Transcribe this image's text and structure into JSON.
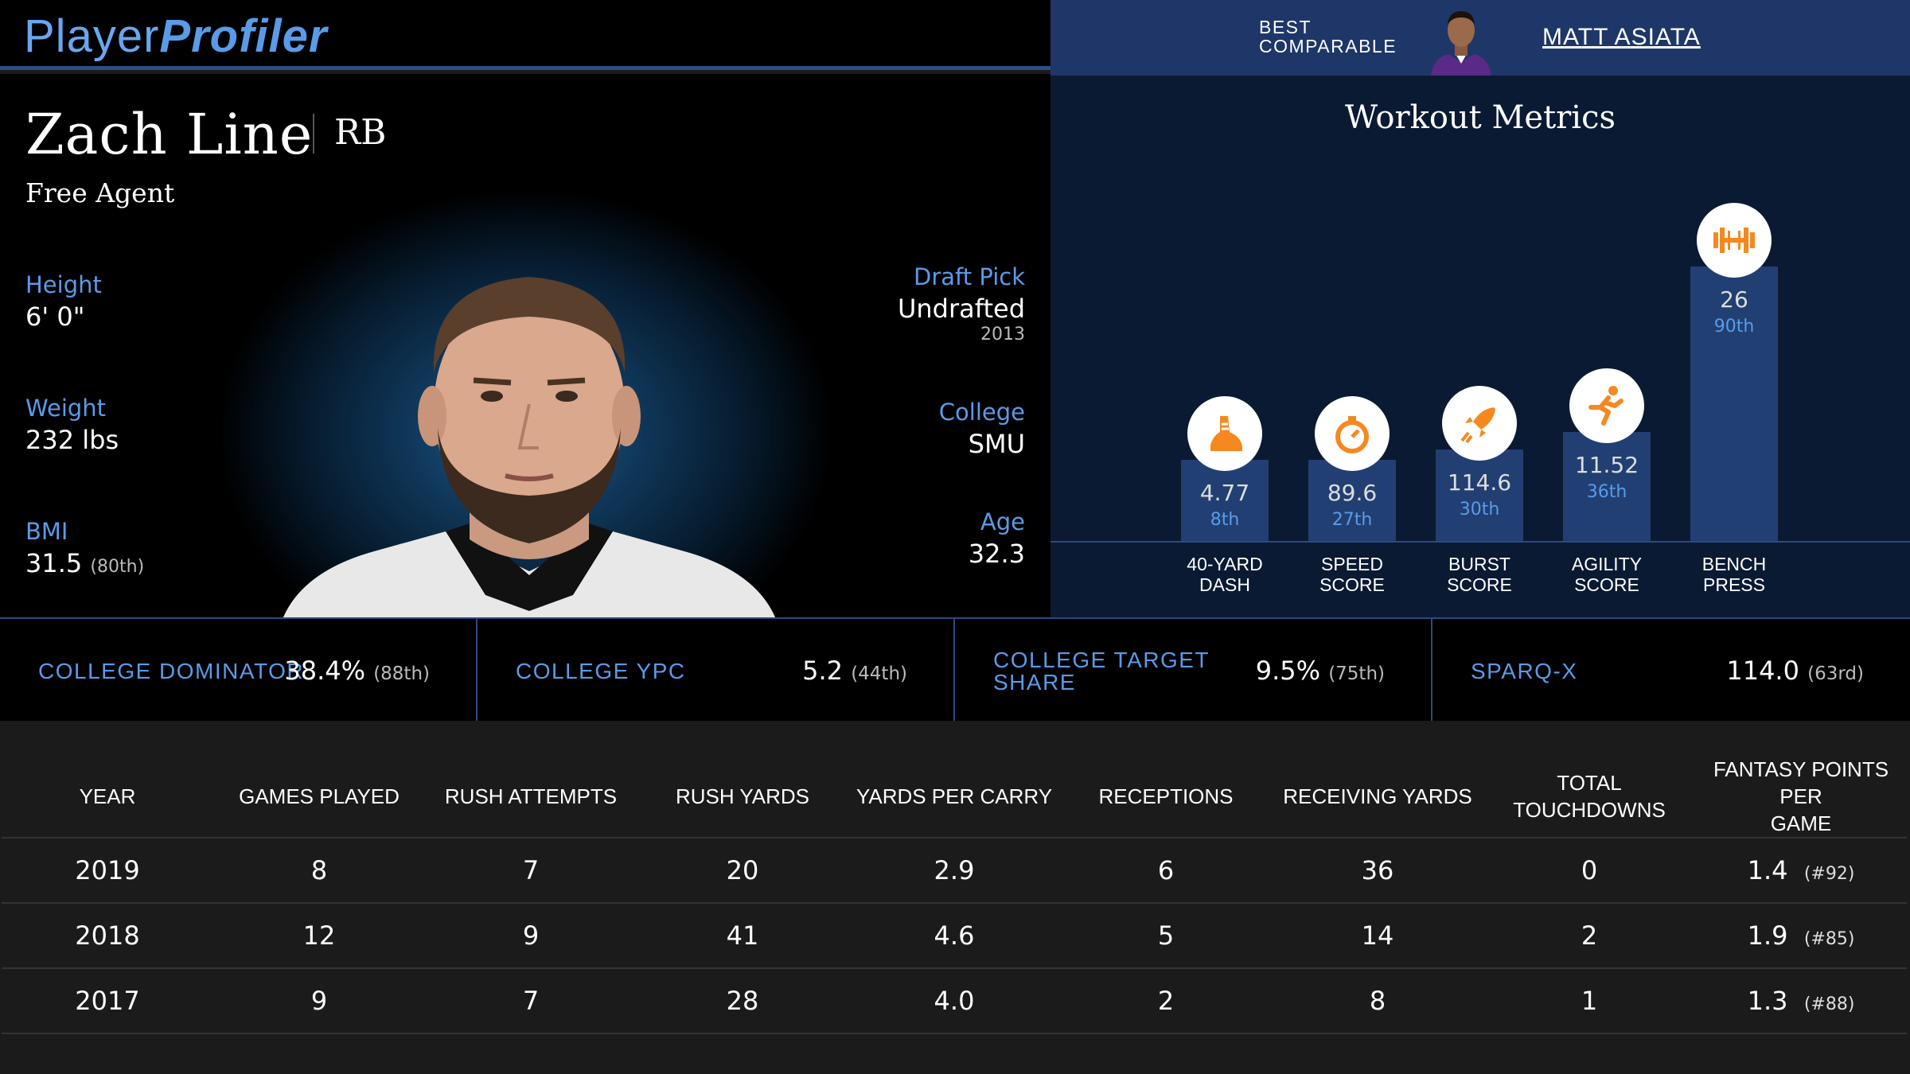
{
  "header": {
    "logo_part1": "Player",
    "logo_part2": "Profiler",
    "best_comparable_line1": "BEST",
    "best_comparable_line2": "COMPARABLE",
    "comparable_name": "MATT ASIATA"
  },
  "player": {
    "name": "Zach Line",
    "position": "RB",
    "team": "Free Agent",
    "height_label": "Height",
    "height": "6' 0\"",
    "weight_label": "Weight",
    "weight": "232 lbs",
    "bmi_label": "BMI",
    "bmi": "31.5",
    "bmi_pct": "(80th)",
    "draft_label": "Draft Pick",
    "draft": "Undrafted",
    "draft_year": "2013",
    "college_label": "College",
    "college": "SMU",
    "age_label": "Age",
    "age": "32.3"
  },
  "workout": {
    "title": "Workout Metrics",
    "metrics": [
      {
        "value": "4.77",
        "percentile": "8th",
        "label1": "40-YARD",
        "label2": "DASH",
        "icon": "shoe-icon",
        "pct_num": 8
      },
      {
        "value": "89.6",
        "percentile": "27th",
        "label1": "SPEED",
        "label2": "SCORE",
        "icon": "stopwatch-icon",
        "pct_num": 27
      },
      {
        "value": "114.6",
        "percentile": "30th",
        "label1": "BURST",
        "label2": "SCORE",
        "icon": "rocket-icon",
        "pct_num": 30
      },
      {
        "value": "11.52",
        "percentile": "36th",
        "label1": "AGILITY",
        "label2": "SCORE",
        "icon": "runner-icon",
        "pct_num": 36
      },
      {
        "value": "26",
        "percentile": "90th",
        "label1": "BENCH",
        "label2": "PRESS",
        "icon": "dumbbell-icon",
        "pct_num": 90
      }
    ],
    "accent_color": "#f5891f",
    "bar_color": "#213f72"
  },
  "college_stats": [
    {
      "label1": "COLLEGE DOMINATOR",
      "label2": "",
      "value": "38.4%",
      "pct": "(88th)"
    },
    {
      "label1": "COLLEGE YPC",
      "label2": "",
      "value": "5.2",
      "pct": "(44th)"
    },
    {
      "label1": "COLLEGE TARGET",
      "label2": "SHARE",
      "value": "9.5%",
      "pct": "(75th)"
    },
    {
      "label1": "SPARQ-X",
      "label2": "",
      "value": "114.0",
      "pct": "(63rd)"
    }
  ],
  "table": {
    "headers": [
      "YEAR",
      "GAMES PLAYED",
      "RUSH ATTEMPTS",
      "RUSH YARDS",
      "YARDS PER CARRY",
      "RECEPTIONS",
      "RECEIVING YARDS",
      "TOTAL TOUCHDOWNS",
      "FANTASY POINTS PER",
      "GAME"
    ],
    "rows": [
      {
        "year": "2019",
        "games": "8",
        "rush_att": "7",
        "rush_yds": "20",
        "ypc": "2.9",
        "rec": "6",
        "rec_yds": "36",
        "td": "0",
        "fpts": "1.4",
        "rank": "(#92)"
      },
      {
        "year": "2018",
        "games": "12",
        "rush_att": "9",
        "rush_yds": "41",
        "ypc": "4.6",
        "rec": "5",
        "rec_yds": "14",
        "td": "2",
        "fpts": "1.9",
        "rank": "(#85)"
      },
      {
        "year": "2017",
        "games": "9",
        "rush_att": "7",
        "rush_yds": "28",
        "ypc": "4.0",
        "rec": "2",
        "rec_yds": "8",
        "td": "1",
        "fpts": "1.3",
        "rank": "(#88)"
      }
    ]
  },
  "colors": {
    "accent_blue": "#5a9be8",
    "navy": "#1e3768",
    "workout_bg": "#0b1a33"
  }
}
